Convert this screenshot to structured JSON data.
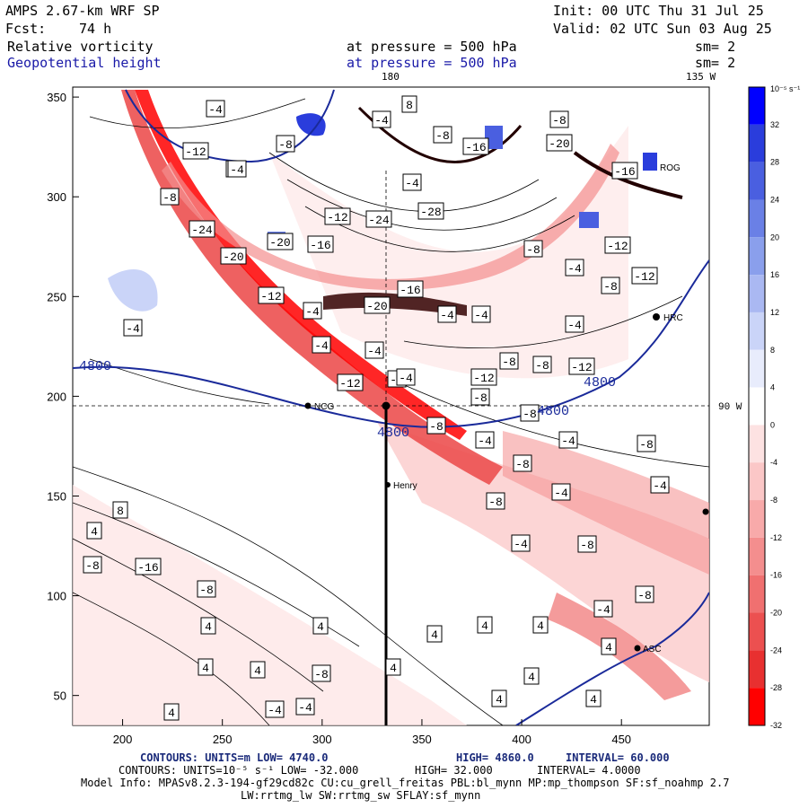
{
  "header": {
    "model": "AMPS 2.67-km WRF SP",
    "init": "Init: 00 UTC Thu 31 Jul 25",
    "fcst_label": "Fcst:",
    "fcst_value": "74 h",
    "valid": "Valid: 02 UTC Sun 03 Aug 25",
    "field1_name": "Relative vorticity",
    "field1_level": "at pressure =  500 hPa",
    "field1_sm": "sm= 2",
    "field2_name": "Geopotential height",
    "field2_level": "at pressure =  500 hPa",
    "field2_sm": "sm= 2"
  },
  "map": {
    "top_lon_label": "180",
    "top_right_lon_label": "135 W",
    "right_lat_label": "90 W",
    "x_ticks": [
      "200",
      "250",
      "300",
      "350",
      "400",
      "450"
    ],
    "y_ticks": [
      "350",
      "300",
      "250",
      "200",
      "150",
      "100",
      "50"
    ],
    "height_contour_labels": [
      "4800",
      "4800",
      "4800",
      "4800"
    ],
    "stations": [
      "NCG",
      "Henry",
      "HRC",
      "ROG",
      "ASC"
    ],
    "vorticity_labels": [
      "-8",
      "-4",
      "8",
      "-4",
      "-8",
      "-8",
      "-12",
      "-4",
      "-4",
      "-8",
      "-8",
      "-20",
      "-16",
      "-12",
      "-24",
      "-28",
      "-20",
      "-16",
      "-12",
      "-24",
      "-20",
      "-4",
      "-20",
      "-16",
      "-4",
      "-4",
      "-8",
      "-8",
      "-12",
      "-4",
      "-8",
      "-4",
      "-8",
      "-12",
      "-16",
      "-12",
      "-12",
      "-8",
      "-8",
      "-4",
      "-8",
      "-4",
      "-4",
      "-8",
      "-4",
      "-8",
      "-4",
      "-4",
      "-8",
      "-4",
      "-8",
      "-4",
      "-8",
      "-8",
      "-4",
      "4",
      "4",
      "4",
      "4",
      "4",
      "4",
      "4",
      "4",
      "4",
      "4",
      "4",
      "4",
      "4",
      "4",
      "8",
      "-4",
      "-8",
      "-16",
      "-12",
      "-8",
      "-8",
      "-4",
      "-4",
      "-4"
    ]
  },
  "colorbar": {
    "units": "10⁻⁵ s⁻¹",
    "levels": [
      "32",
      "28",
      "24",
      "20",
      "16",
      "12",
      "8",
      "4",
      "0",
      "-4",
      "-8",
      "-12",
      "-16",
      "-20",
      "-24",
      "-28",
      "-32"
    ],
    "colors": [
      "#0000ff",
      "#2a3ddc",
      "#4a5fe0",
      "#6a80e6",
      "#8a9fec",
      "#aab8f2",
      "#cad4f8",
      "#e8ecfc",
      "#ffffff",
      "#fde2e2",
      "#fbc7c7",
      "#f8aaaa",
      "#f48e8e",
      "#f07070",
      "#ec5050",
      "#e83030",
      "#ff0000"
    ]
  },
  "footer": {
    "line1_a": "CONTOURS:  UNITS=m  LOW=  4740.0",
    "line1_b": "HIGH=  4860.0",
    "line1_c": "INTERVAL=   60.000",
    "line2_a": "CONTOURS:  UNITS=10⁻⁵ s⁻¹  LOW= -32.000",
    "line2_b": "HIGH=  32.000",
    "line2_c": "INTERVAL=   4.0000",
    "line3": "Model Info: MPASv8.2.3-194-gf29cd82c CU:cu_grell_freitas PBL:bl_mynn MP:mp_thompson SF:sf_noahmp 2.7",
    "line4": "LW:rrtmg_lw SW:rrtmg_sw SFLAY:sf_mynn"
  }
}
